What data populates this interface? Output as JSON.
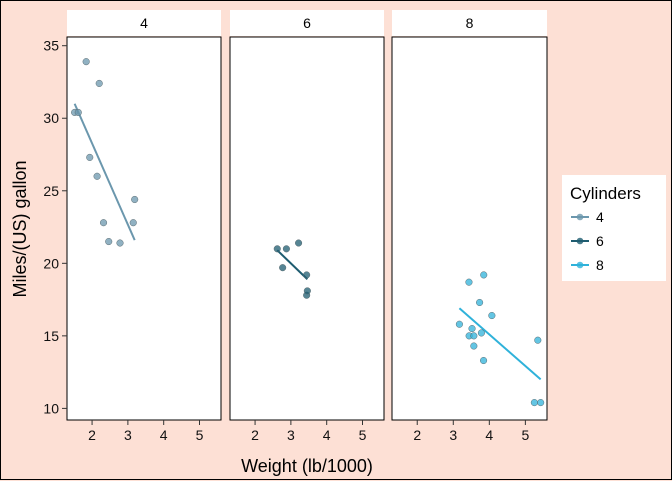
{
  "chart_data": {
    "type": "scatter",
    "xlabel": "Weight (lb/1000)",
    "ylabel": "Miles/(US) gallon",
    "xlim": [
      1.3,
      5.6
    ],
    "ylim": [
      9.2,
      35.6
    ],
    "xticks": [
      2,
      3,
      4,
      5
    ],
    "yticks": [
      10,
      15,
      20,
      25,
      30,
      35
    ],
    "legend": {
      "title": "Cylinders",
      "position": "right"
    },
    "facets": [
      {
        "label": "4",
        "color": "#6b97ad",
        "points": [
          [
            1.513,
            30.4
          ],
          [
            1.615,
            30.4
          ],
          [
            1.835,
            33.9
          ],
          [
            1.935,
            27.3
          ],
          [
            2.14,
            26.0
          ],
          [
            2.2,
            32.4
          ],
          [
            2.32,
            22.8
          ],
          [
            2.465,
            21.5
          ],
          [
            2.78,
            21.4
          ],
          [
            3.15,
            22.8
          ],
          [
            3.19,
            24.4
          ]
        ],
        "fit": [
          [
            1.513,
            31.0
          ],
          [
            3.19,
            21.6
          ]
        ]
      },
      {
        "label": "6",
        "color": "#1e5c70",
        "points": [
          [
            2.62,
            21.0
          ],
          [
            2.77,
            19.7
          ],
          [
            2.875,
            21.0
          ],
          [
            3.215,
            21.4
          ],
          [
            3.44,
            19.2
          ],
          [
            3.44,
            17.8
          ],
          [
            3.46,
            18.1
          ]
        ],
        "fit": [
          [
            2.62,
            20.9
          ],
          [
            3.46,
            18.9
          ]
        ]
      },
      {
        "label": "8",
        "color": "#2fb2da",
        "points": [
          [
            3.17,
            15.8
          ],
          [
            3.435,
            18.7
          ],
          [
            3.44,
            15.0
          ],
          [
            3.52,
            15.5
          ],
          [
            3.57,
            14.3
          ],
          [
            3.57,
            15.0
          ],
          [
            3.73,
            17.3
          ],
          [
            3.78,
            15.2
          ],
          [
            3.84,
            13.3
          ],
          [
            3.845,
            19.2
          ],
          [
            4.07,
            16.4
          ],
          [
            5.25,
            10.4
          ],
          [
            5.345,
            14.7
          ],
          [
            5.424,
            10.4
          ]
        ],
        "fit": [
          [
            3.17,
            16.9
          ],
          [
            5.424,
            12.0
          ]
        ]
      }
    ]
  }
}
